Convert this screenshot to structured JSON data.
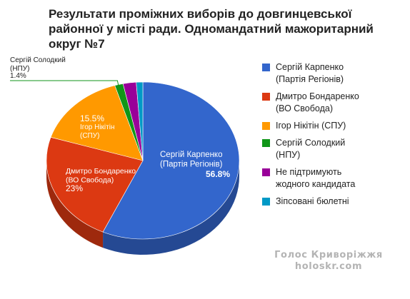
{
  "chart_data": {
    "type": "pie",
    "title": "Результати проміжних виборів до довгинцевської\nрайонної у місті ради. Одномандатний мажоритарний\nокруг №7",
    "series": [
      {
        "name": "Сергій Карпенко\n(Партія Регіонів)",
        "slice_label": "Сергій Карпенко\n(Партія Регіонів)",
        "value": 56.8,
        "value_label": "56.8%",
        "color": "#3366cc"
      },
      {
        "name": "Дмитро Бондаренко\n(ВО Свобода)",
        "slice_label": "Дмитро Бондаренко\n(ВО Свобода)",
        "value": 23,
        "value_label": "23%",
        "color": "#dc3912"
      },
      {
        "name": "Ігор Нікітін (СПУ)",
        "slice_label": "Ігор Нікітін\n(СПУ)",
        "value": 15.5,
        "value_label": "15.5%",
        "color": "#ff9900"
      },
      {
        "name": "Сергій Солодкий\n(НПУ)",
        "slice_label": "Сергій Солодкий\n(НПУ)",
        "value": 1.4,
        "value_label": "1.4%",
        "color": "#109618"
      },
      {
        "name": "Не підтримують\nжодного кандидата",
        "slice_label": "",
        "value": 2.2,
        "value_label": "",
        "color": "#990099"
      },
      {
        "name": "Зіпсовані бюлетні",
        "slice_label": "",
        "value": 1.1,
        "value_label": "",
        "color": "#0099c6"
      }
    ],
    "legend_position": "right"
  },
  "watermark": {
    "line1": "Голос Криворіжжя",
    "line2": "holoskr.com"
  }
}
